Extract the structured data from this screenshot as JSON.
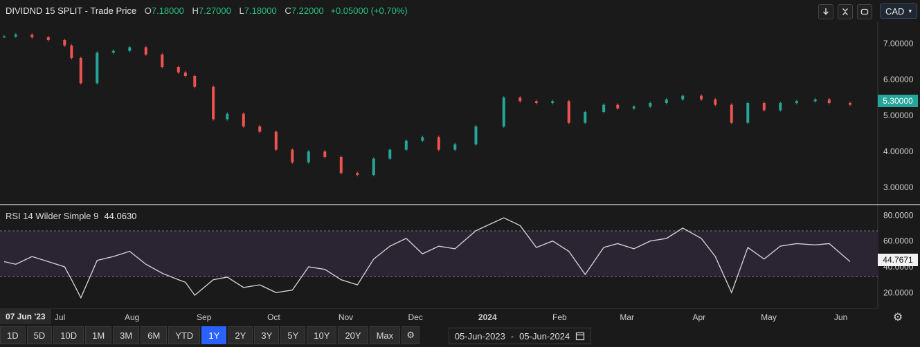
{
  "header": {
    "symbol": "DIVIDND 15 SPLIT",
    "sep": "-",
    "series": "Trade Price",
    "o_label": "O",
    "o_val": "7.18000",
    "h_label": "H",
    "h_val": "7.27000",
    "l_label": "L",
    "l_val": "7.18000",
    "c_label": "C",
    "c_val": "7.22000",
    "change": "+0.05000 (+0.70%)"
  },
  "toolbar": {
    "currency": "CAD",
    "icons": [
      "download-arrow-icon",
      "collapse-icon",
      "refresh-icon"
    ]
  },
  "price_axis": {
    "ticks": [
      "7.00000",
      "6.00000",
      "5.00000",
      "4.00000",
      "3.00000"
    ],
    "last_label": "5.30000"
  },
  "rsi": {
    "title": "RSI 14 Wilder Simple 9",
    "value": "44.0630",
    "ticks": [
      "80.0000",
      "60.0000",
      "40.0000",
      "20.0000"
    ],
    "last_label": "44.7671"
  },
  "x_axis": {
    "first_label": "07 Jun '23",
    "labels": [
      "Jul",
      "Aug",
      "Sep",
      "Oct",
      "Nov",
      "Dec",
      "2024",
      "Feb",
      "Mar",
      "Apr",
      "May",
      "Jun"
    ]
  },
  "ranges": {
    "buttons": [
      "1D",
      "5D",
      "10D",
      "1M",
      "3M",
      "6M",
      "YTD",
      "1Y",
      "2Y",
      "3Y",
      "5Y",
      "10Y",
      "20Y",
      "Max"
    ],
    "active": "1Y"
  },
  "date_range": {
    "from": "05-Jun-2023",
    "sep": "-",
    "to": "05-Jun-2024"
  },
  "colors": {
    "up": "#26a69a",
    "down": "#ef5350",
    "rsi_line": "#cfcfcf",
    "rsi_band": "#2a2433",
    "last_price_bg": "#26a69a"
  },
  "chart_data": [
    {
      "type": "candlestick",
      "ylim": [
        2.6,
        7.6
      ],
      "x": [
        "2023-06-07",
        "2023-06-12",
        "2023-06-19",
        "2023-06-26",
        "2023-07-03",
        "2023-07-06",
        "2023-07-10",
        "2023-07-17",
        "2023-07-24",
        "2023-07-31",
        "2023-08-07",
        "2023-08-14",
        "2023-08-21",
        "2023-08-24",
        "2023-08-28",
        "2023-09-05",
        "2023-09-11",
        "2023-09-18",
        "2023-09-25",
        "2023-10-02",
        "2023-10-09",
        "2023-10-16",
        "2023-10-23",
        "2023-10-30",
        "2023-11-06",
        "2023-11-13",
        "2023-11-20",
        "2023-11-27",
        "2023-12-04",
        "2023-12-11",
        "2023-12-18",
        "2023-12-27",
        "2024-01-08",
        "2024-01-15",
        "2024-01-22",
        "2024-01-29",
        "2024-02-05",
        "2024-02-12",
        "2024-02-20",
        "2024-02-26",
        "2024-03-04",
        "2024-03-11",
        "2024-03-18",
        "2024-03-25",
        "2024-04-02",
        "2024-04-08",
        "2024-04-15",
        "2024-04-22",
        "2024-04-29",
        "2024-05-06",
        "2024-05-13",
        "2024-05-21",
        "2024-05-27",
        "2024-06-05"
      ],
      "close": [
        7.2,
        7.25,
        7.18,
        7.1,
        6.95,
        6.6,
        5.9,
        6.75,
        6.8,
        6.9,
        6.7,
        6.35,
        6.2,
        6.1,
        5.8,
        4.9,
        5.05,
        4.7,
        4.55,
        4.05,
        3.7,
        4.0,
        3.85,
        3.4,
        3.35,
        3.8,
        4.05,
        4.3,
        4.4,
        4.05,
        4.2,
        4.7,
        5.5,
        5.4,
        5.35,
        5.4,
        4.8,
        5.1,
        5.3,
        5.2,
        5.25,
        5.35,
        5.45,
        5.55,
        5.45,
        5.3,
        4.8,
        5.35,
        5.15,
        5.35,
        5.4,
        5.45,
        5.35,
        5.3
      ]
    },
    {
      "type": "line",
      "ylim": [
        10,
        85
      ],
      "x": [
        "2023-06-07",
        "2023-06-12",
        "2023-06-19",
        "2023-06-26",
        "2023-07-03",
        "2023-07-06",
        "2023-07-10",
        "2023-07-17",
        "2023-07-24",
        "2023-07-31",
        "2023-08-07",
        "2023-08-14",
        "2023-08-21",
        "2023-08-24",
        "2023-08-28",
        "2023-09-05",
        "2023-09-11",
        "2023-09-18",
        "2023-09-25",
        "2023-10-02",
        "2023-10-09",
        "2023-10-16",
        "2023-10-23",
        "2023-10-30",
        "2023-11-06",
        "2023-11-13",
        "2023-11-20",
        "2023-11-27",
        "2023-12-04",
        "2023-12-11",
        "2023-12-18",
        "2023-12-27",
        "2024-01-08",
        "2024-01-15",
        "2024-01-22",
        "2024-01-29",
        "2024-02-05",
        "2024-02-12",
        "2024-02-20",
        "2024-02-26",
        "2024-03-04",
        "2024-03-11",
        "2024-03-18",
        "2024-03-25",
        "2024-04-02",
        "2024-04-08",
        "2024-04-15",
        "2024-04-22",
        "2024-04-29",
        "2024-05-06",
        "2024-05-13",
        "2024-05-21",
        "2024-05-27",
        "2024-06-05"
      ],
      "y": [
        44,
        42,
        48,
        44,
        40,
        30,
        16,
        45,
        48,
        52,
        42,
        35,
        30,
        28,
        18,
        30,
        32,
        24,
        26,
        20,
        22,
        40,
        38,
        30,
        26,
        46,
        56,
        62,
        50,
        56,
        54,
        68,
        78,
        72,
        55,
        60,
        52,
        34,
        55,
        58,
        54,
        60,
        62,
        70,
        62,
        48,
        20,
        55,
        46,
        56,
        58,
        57,
        58,
        44
      ],
      "bands": [
        30,
        70
      ]
    }
  ]
}
